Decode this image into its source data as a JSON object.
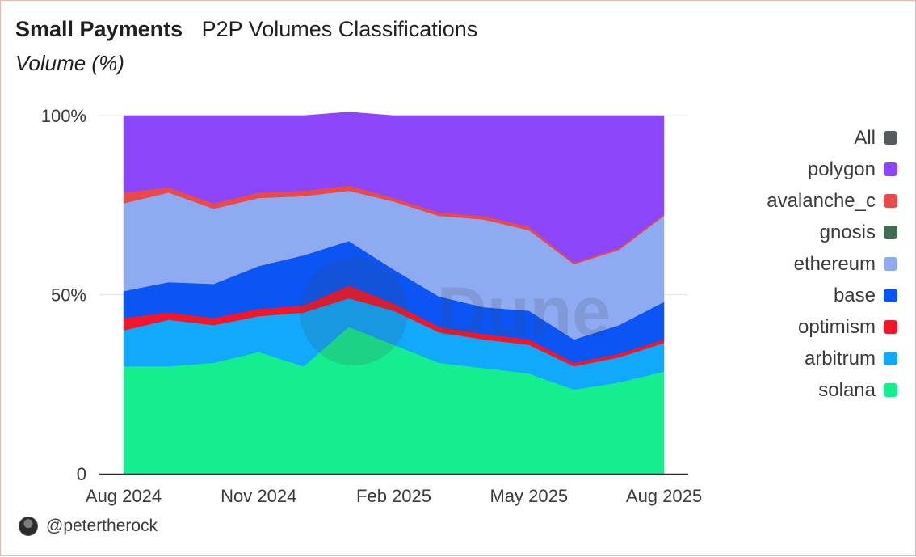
{
  "header": {
    "title": "Small Payments",
    "subtitle": "P2P Volumes Classifications",
    "yunit": "Volume (%)"
  },
  "footer": {
    "handle": "@petertherock"
  },
  "watermark": "Dune",
  "chart_data": {
    "type": "area",
    "stacked": true,
    "normalized_percent": true,
    "x": [
      "2024-08",
      "2024-09",
      "2024-10",
      "2024-11",
      "2024-12",
      "2025-01",
      "2025-02",
      "2025-03",
      "2025-04",
      "2025-05",
      "2025-06",
      "2025-07",
      "2025-08"
    ],
    "xtick_labels": [
      "Aug 2024",
      "Nov 2024",
      "Feb 2025",
      "May 2025",
      "Aug 2025"
    ],
    "xtick_positions": [
      "2024-08",
      "2024-11",
      "2025-02",
      "2025-05",
      "2025-08"
    ],
    "ytick_labels": [
      "100%",
      "50%",
      "0"
    ],
    "ytick_values": [
      100,
      50,
      0
    ],
    "ylim": [
      0,
      100
    ],
    "grid": true,
    "legend_position": "right",
    "legend": [
      {
        "name": "All",
        "color": "#555a5e"
      },
      {
        "name": "polygon",
        "color": "#8b45fb"
      },
      {
        "name": "avalanche_c",
        "color": "#e8494a"
      },
      {
        "name": "gnosis",
        "color": "#3f6c55"
      },
      {
        "name": "ethereum",
        "color": "#8eaaf0"
      },
      {
        "name": "base",
        "color": "#0a55f4"
      },
      {
        "name": "optimism",
        "color": "#f31629"
      },
      {
        "name": "arbitrum",
        "color": "#10a9fb"
      },
      {
        "name": "solana",
        "color": "#15ee8e"
      }
    ],
    "series": [
      {
        "name": "solana",
        "color": "#15ee8e",
        "values": [
          30,
          30,
          31,
          34,
          30,
          41,
          36,
          31,
          29.5,
          28,
          23.5,
          25.5,
          28.5
        ]
      },
      {
        "name": "arbitrum",
        "color": "#10a9fb",
        "values": [
          10,
          13,
          10.5,
          10,
          15,
          8,
          9.5,
          8.5,
          8,
          8,
          6.5,
          7,
          8
        ]
      },
      {
        "name": "optimism",
        "color": "#f31629",
        "values": [
          3.5,
          2,
          2,
          2,
          2,
          3.5,
          2,
          1.5,
          1.5,
          1.5,
          1,
          1,
          1
        ]
      },
      {
        "name": "base",
        "color": "#0a55f4",
        "values": [
          7.5,
          8.5,
          9.5,
          12,
          14,
          12.5,
          9.5,
          8.5,
          7.5,
          8,
          6.5,
          8,
          10.5
        ]
      },
      {
        "name": "gnosis",
        "color": "#3f6c55",
        "values": [
          0,
          0,
          0,
          0,
          0,
          0,
          0,
          0,
          0,
          0,
          0,
          0,
          0
        ]
      },
      {
        "name": "ethereum",
        "color": "#8eaaf0",
        "values": [
          24.5,
          25,
          21,
          19,
          16.5,
          14,
          19,
          22.5,
          24.5,
          22.5,
          21,
          21,
          24
        ]
      },
      {
        "name": "avalanche_c",
        "color": "#e8494a",
        "values": [
          3,
          1.5,
          1.5,
          1.5,
          1.5,
          1.5,
          1,
          1,
          1,
          1,
          0.5,
          0.5,
          0.5
        ]
      },
      {
        "name": "polygon",
        "color": "#8b45fb",
        "values": [
          21.5,
          20,
          24.5,
          21.5,
          21,
          20.5,
          23,
          27,
          28,
          31,
          41,
          37,
          27.5
        ]
      }
    ]
  }
}
